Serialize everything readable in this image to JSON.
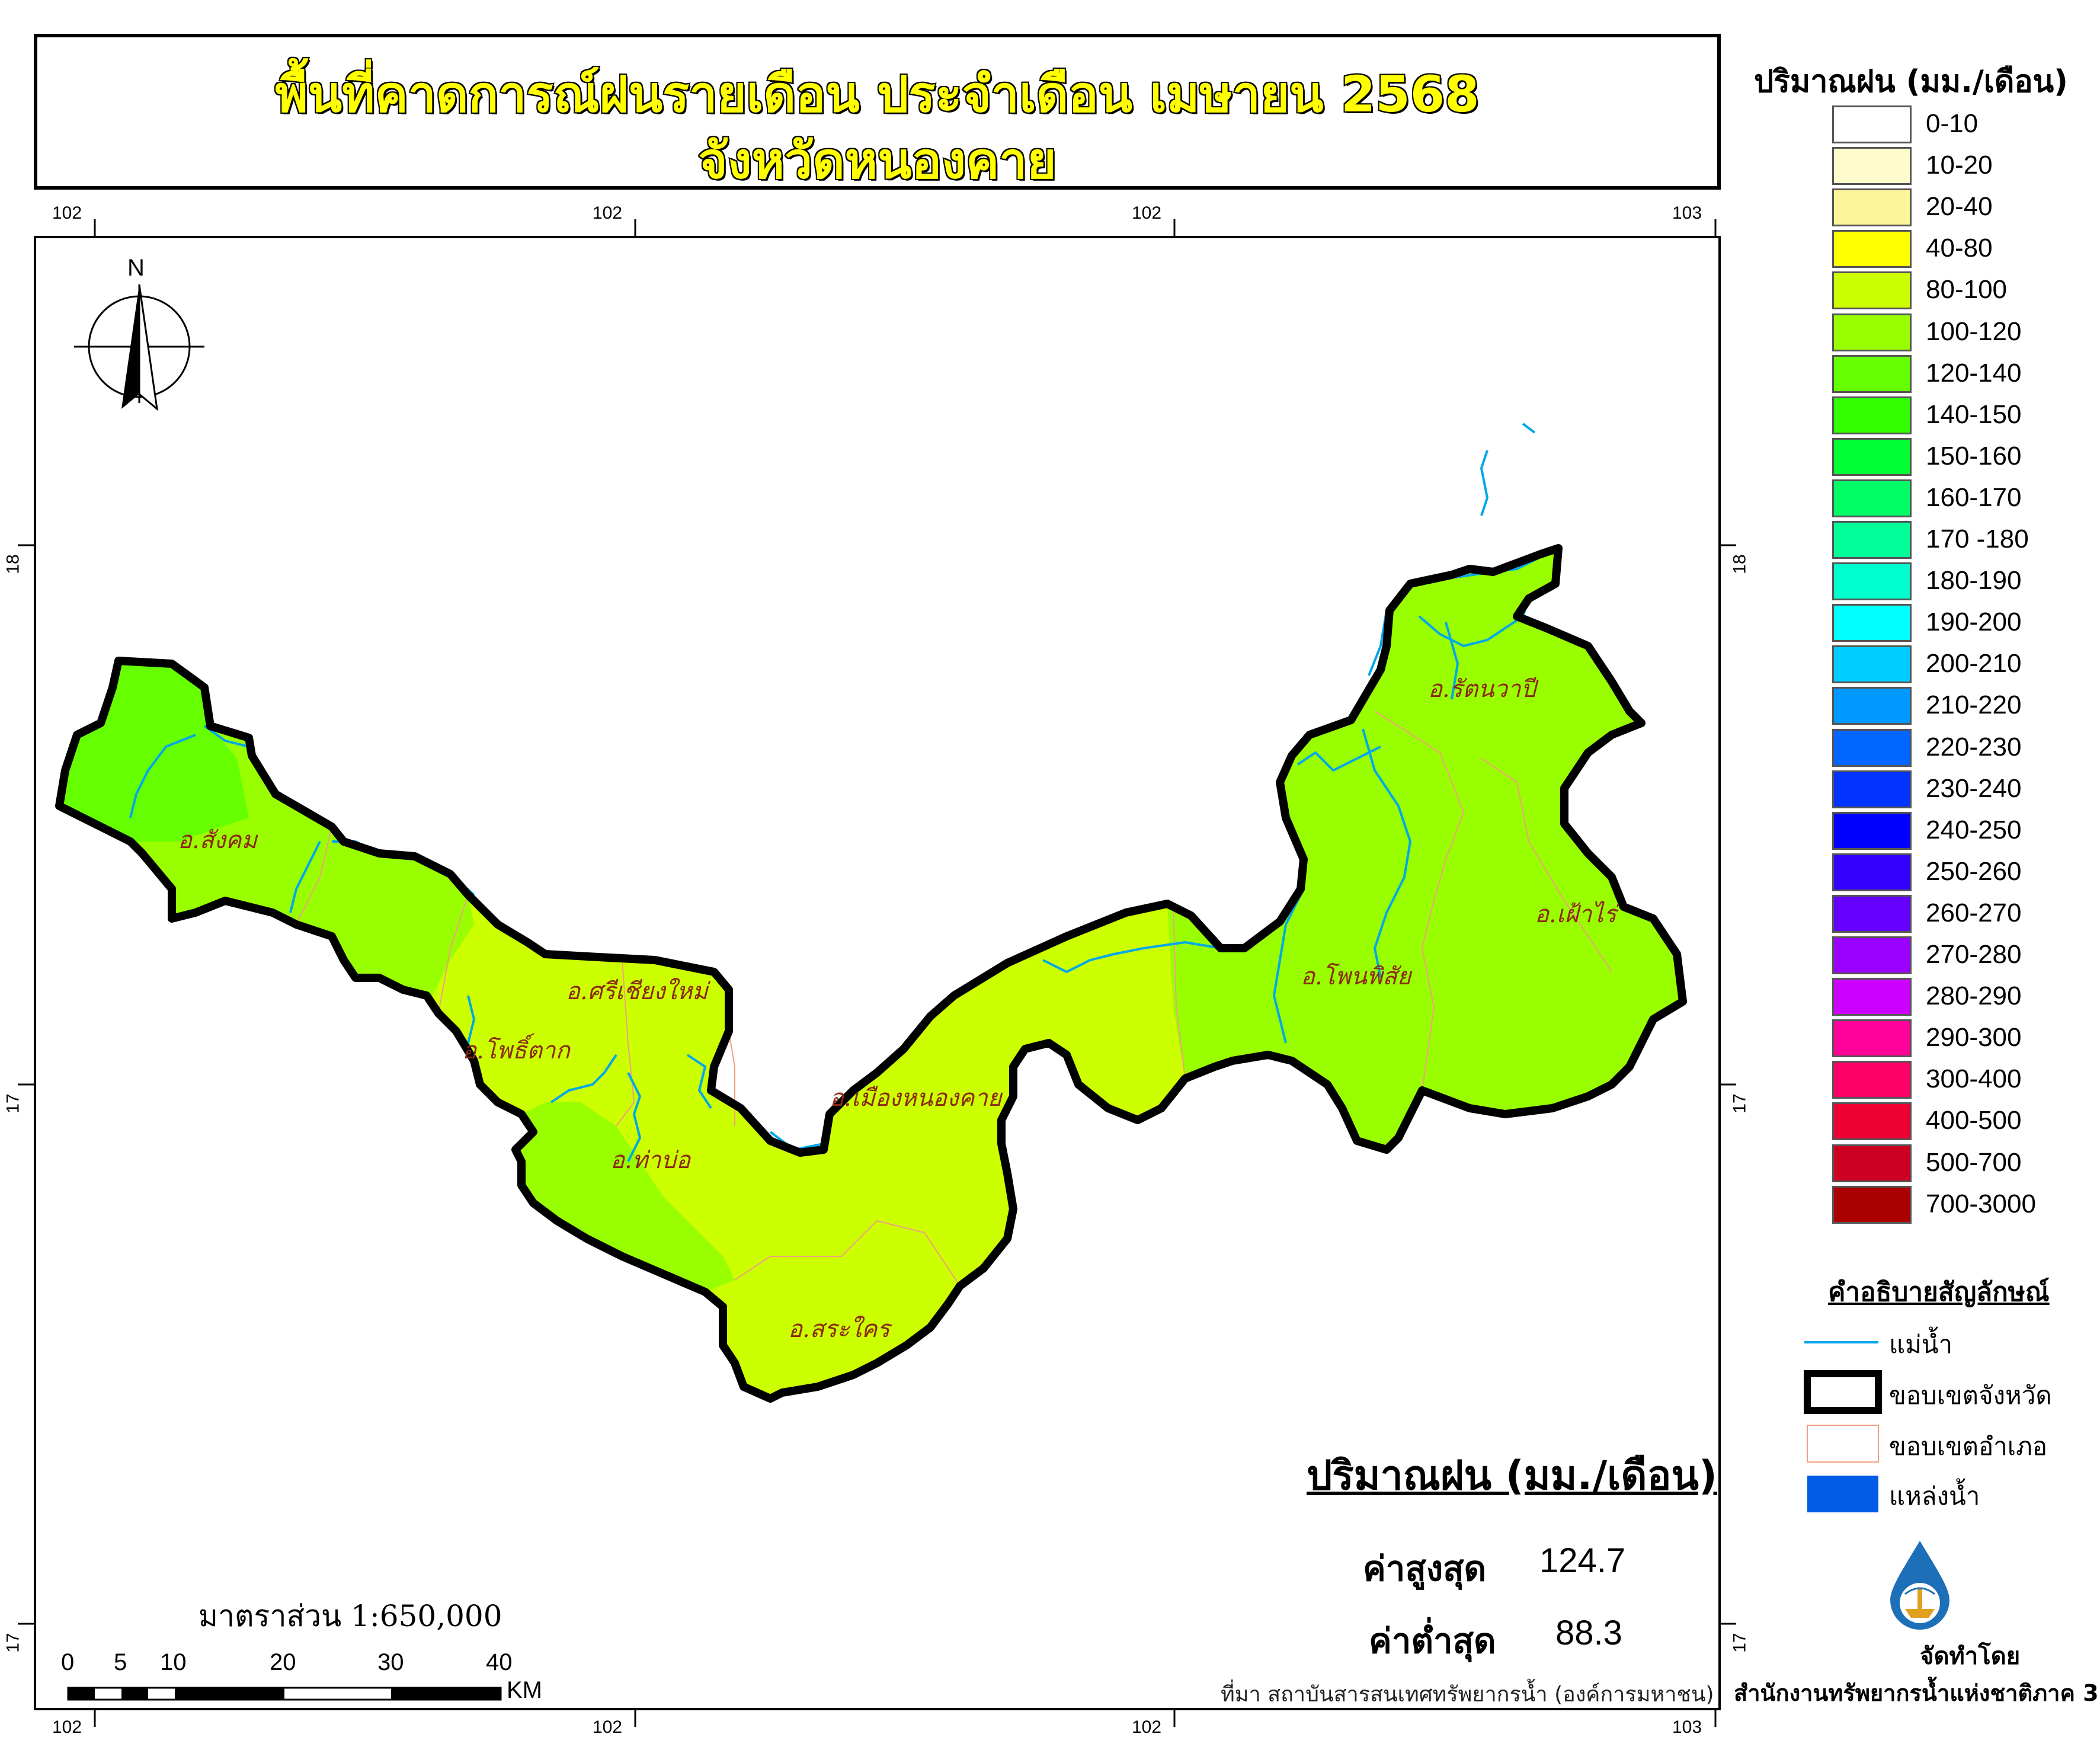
{
  "title": {
    "line1": "พื้นที่คาดการณ์ฝนรายเดือน ประจำเดือน เมษายน 2568",
    "line2": "จังหวัดหนองคาย"
  },
  "coordinates": {
    "top": [
      "102",
      "102",
      "102",
      "103"
    ],
    "bottom": [
      "102",
      "102",
      "102",
      "103"
    ],
    "left": [
      "18",
      "17",
      "17"
    ],
    "right": [
      "18",
      "17",
      "17"
    ]
  },
  "north_arrow": {
    "label": "N"
  },
  "districts": [
    "อ.สังคม",
    "อ.ศรีเชียงใหม่",
    "อ.โพธิ์ตาก",
    "อ.ท่าบ่อ",
    "อ.เมืองหนองคาย",
    "อ.สระใคร",
    "อ.โพนพิสัย",
    "อ.รัตนวาปี",
    "อ.เฝ้าไร่"
  ],
  "legend": {
    "title": "ปริมาณฝน (มม./เดือน)",
    "classes": [
      {
        "label": "0-10",
        "color": "#ffffff"
      },
      {
        "label": "10-20",
        "color": "#fefccc"
      },
      {
        "label": "20-40",
        "color": "#fdf59a"
      },
      {
        "label": "40-80",
        "color": "#ffff00"
      },
      {
        "label": "80-100",
        "color": "#ccff00"
      },
      {
        "label": "100-120",
        "color": "#99ff00"
      },
      {
        "label": "120-140",
        "color": "#66ff00"
      },
      {
        "label": "140-150",
        "color": "#33ff00"
      },
      {
        "label": "150-160",
        "color": "#00ff33"
      },
      {
        "label": "160-170",
        "color": "#00ff66"
      },
      {
        "label": "170 -180",
        "color": "#00ff99"
      },
      {
        "label": "180-190",
        "color": "#00ffcc"
      },
      {
        "label": "190-200",
        "color": "#00ffff"
      },
      {
        "label": "200-210",
        "color": "#00ccff"
      },
      {
        "label": "210-220",
        "color": "#0099ff"
      },
      {
        "label": "220-230",
        "color": "#0066ff"
      },
      {
        "label": "230-240",
        "color": "#0033ff"
      },
      {
        "label": "240-250",
        "color": "#0000ff"
      },
      {
        "label": "250-260",
        "color": "#3300ff"
      },
      {
        "label": "260-270",
        "color": "#6600ff"
      },
      {
        "label": "270-280",
        "color": "#9900ff"
      },
      {
        "label": "280-290",
        "color": "#cc00ff"
      },
      {
        "label": "290-300",
        "color": "#ff0099"
      },
      {
        "label": "300-400",
        "color": "#ff0066"
      },
      {
        "label": "400-500",
        "color": "#ee0033"
      },
      {
        "label": "500-700",
        "color": "#cc0022"
      },
      {
        "label": "700-3000",
        "color": "#aa0000"
      }
    ]
  },
  "symbols": {
    "title": "คำอธิบายสัญลักษณ์",
    "items": [
      {
        "label": "แม่น้ำ",
        "kind": "river",
        "color": "#00a8e8"
      },
      {
        "label": "ขอบเขตจังหวัด",
        "kind": "province-boundary",
        "color": "#000000"
      },
      {
        "label": "ขอบเขตอำเภอ",
        "kind": "district-boundary",
        "color": "#f0a080"
      },
      {
        "label": "แหล่งน้ำ",
        "kind": "water-body",
        "color": "#005ce6"
      }
    ]
  },
  "stats": {
    "title": "ปริมาณฝน (มม./เดือน)",
    "max_label": "ค่าสูงสุด",
    "max_value": "124.7",
    "min_label": "ค่าต่ำสุด",
    "min_value": "88.3"
  },
  "scale": {
    "text": "มาตราส่วน 1:650,000",
    "ticks": [
      "0",
      "5",
      "10",
      "20",
      "30",
      "40"
    ],
    "unit": "KM"
  },
  "footer": {
    "source": "ที่มา  สถาบันสารสนเทศทรัพยากรน้ำ (องค์การมหาชน)",
    "made_by": "จัดทำโดย",
    "office": "สำนักงานทรัพยากรน้ำแห่งชาติภาค 3"
  },
  "colors": {
    "region_green": "#99ff00",
    "region_yellowgreen": "#ccff00",
    "river": "#00a8e8"
  }
}
